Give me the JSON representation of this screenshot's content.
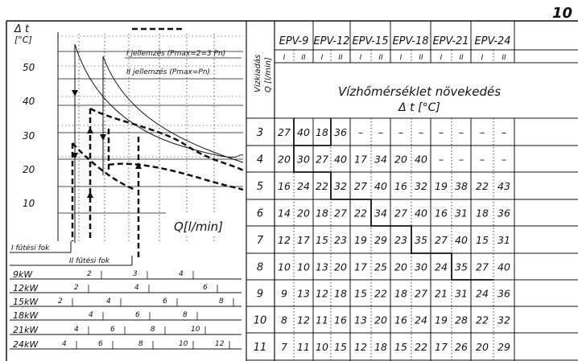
{
  "page_number": "10",
  "chart": {
    "y_axis_label": "Δ t",
    "y_axis_unit": "[°C]",
    "y_ticks": [
      "50",
      "40",
      "30",
      "20",
      "10"
    ],
    "x_axis_label": "Q[l/min]",
    "legend": [
      {
        "label": "I jellemzés (Pmax=2=3 Pn)",
        "style": "dashed"
      },
      {
        "label": "II jellemzés (Pmax=Pn)",
        "style": "solid"
      }
    ],
    "step_labels": [
      "I fűtési fok",
      "II fűtési fok"
    ]
  },
  "power_scales": [
    {
      "label": "9kW",
      "ticks": [
        "2",
        "3",
        "4"
      ]
    },
    {
      "label": "12kW",
      "ticks": [
        "2",
        "4",
        "6"
      ]
    },
    {
      "label": "15kW",
      "ticks": [
        "2",
        "4",
        "6",
        "8"
      ]
    },
    {
      "label": "18kW",
      "ticks": [
        "4",
        "6",
        "8"
      ]
    },
    {
      "label": "21kW",
      "ticks": [
        "4",
        "6",
        "8",
        "10"
      ]
    },
    {
      "label": "24kW",
      "ticks": [
        "4",
        "6",
        "8",
        "10",
        "12"
      ]
    }
  ],
  "table": {
    "corner_label_line1": "Vízkiadás",
    "corner_label_line2": "Q [l/min]",
    "models": [
      "EPV-9",
      "EPV-12",
      "EPV-15",
      "EPV-18",
      "EPV-21",
      "EPV-24"
    ],
    "sub_columns": [
      "I",
      "II"
    ],
    "heading_line1": "Vízhőmérséklet növekedés",
    "heading_line2": "Δ t [°C]",
    "rows": [
      {
        "q": "3",
        "values": [
          "27",
          "40",
          "18",
          "36",
          "–",
          "–",
          "–",
          "–",
          "–",
          "–",
          "–",
          "–"
        ]
      },
      {
        "q": "4",
        "values": [
          "20",
          "30",
          "27",
          "40",
          "17",
          "34",
          "20",
          "40",
          "–",
          "–",
          "–",
          "–"
        ]
      },
      {
        "q": "5",
        "values": [
          "16",
          "24",
          "22",
          "32",
          "27",
          "40",
          "16",
          "32",
          "19",
          "38",
          "22",
          "43"
        ]
      },
      {
        "q": "6",
        "values": [
          "14",
          "20",
          "18",
          "27",
          "22",
          "34",
          "27",
          "40",
          "16",
          "31",
          "18",
          "36"
        ]
      },
      {
        "q": "7",
        "values": [
          "12",
          "17",
          "15",
          "23",
          "19",
          "29",
          "23",
          "35",
          "27",
          "40",
          "15",
          "31"
        ]
      },
      {
        "q": "8",
        "values": [
          "10",
          "10",
          "13",
          "20",
          "17",
          "25",
          "20",
          "30",
          "24",
          "35",
          "27",
          "40"
        ]
      },
      {
        "q": "9",
        "values": [
          "9",
          "13",
          "12",
          "18",
          "15",
          "22",
          "18",
          "27",
          "21",
          "31",
          "24",
          "36"
        ]
      },
      {
        "q": "10",
        "values": [
          "8",
          "12",
          "11",
          "16",
          "13",
          "20",
          "16",
          "24",
          "19",
          "28",
          "22",
          "32"
        ]
      },
      {
        "q": "11",
        "values": [
          "7",
          "11",
          "10",
          "15",
          "12",
          "18",
          "15",
          "22",
          "17",
          "26",
          "20",
          "29"
        ]
      }
    ]
  }
}
